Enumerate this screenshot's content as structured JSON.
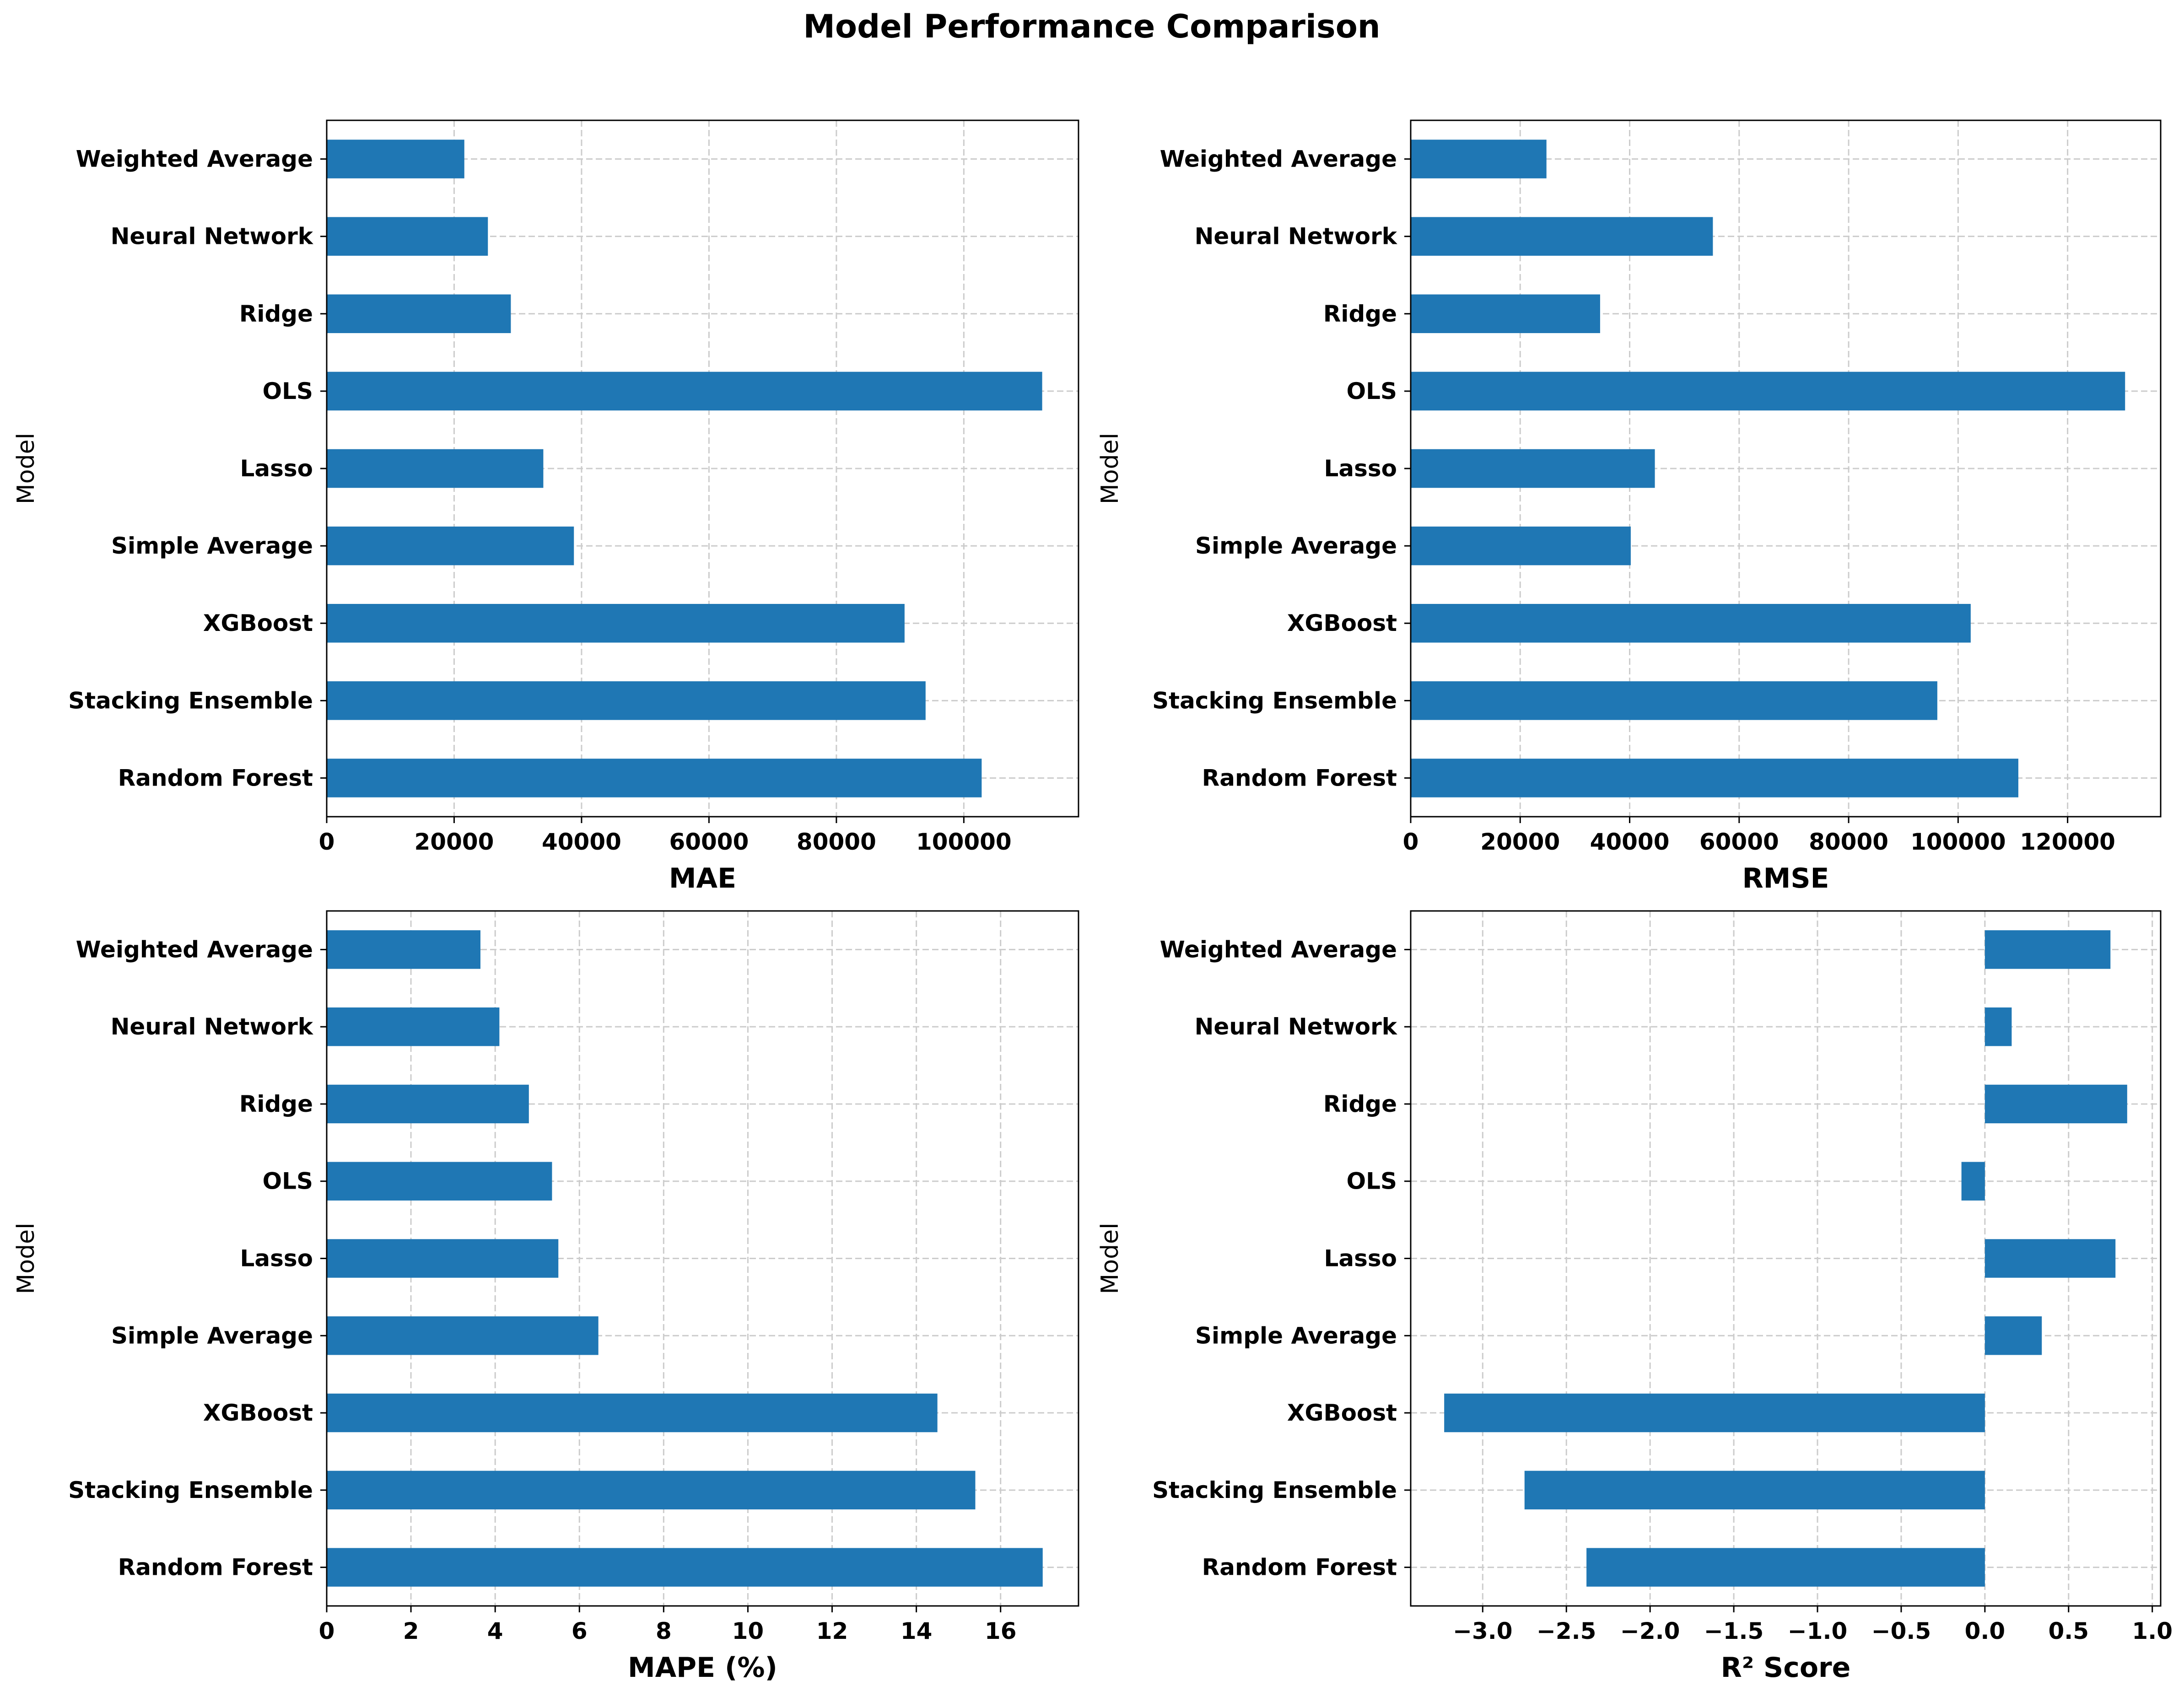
{
  "figure": {
    "title": "Model Performance Comparison"
  },
  "colors": {
    "bar": "#1f77b4",
    "grid": "#cccccc",
    "axis": "#000000",
    "background": "#ffffff"
  },
  "chart_data": [
    {
      "type": "bar",
      "orientation": "horizontal",
      "xlabel": "MAE",
      "ylabel": "Model",
      "categories": [
        "Random Forest",
        "Stacking Ensemble",
        "XGBoost",
        "Simple Average",
        "Lasso",
        "OLS",
        "Ridge",
        "Neural Network",
        "Weighted Average"
      ],
      "values": [
        102800,
        94000,
        90700,
        38800,
        34000,
        112300,
        28900,
        25300,
        21600
      ],
      "xlim": [
        0,
        118000
      ],
      "xticks": [
        0,
        20000,
        40000,
        60000,
        80000,
        100000
      ],
      "xtick_labels": [
        "0",
        "20000",
        "40000",
        "60000",
        "80000",
        "100000"
      ],
      "grid": true
    },
    {
      "type": "bar",
      "orientation": "horizontal",
      "xlabel": "RMSE",
      "ylabel": "Model",
      "categories": [
        "Random Forest",
        "Stacking Ensemble",
        "XGBoost",
        "Simple Average",
        "Lasso",
        "OLS",
        "Ridge",
        "Neural Network",
        "Weighted Average"
      ],
      "values": [
        111000,
        96200,
        102300,
        40200,
        44600,
        130500,
        34600,
        55200,
        24800
      ],
      "xlim": [
        0,
        137000
      ],
      "xticks": [
        0,
        20000,
        40000,
        60000,
        80000,
        100000,
        120000
      ],
      "xtick_labels": [
        "0",
        "20000",
        "40000",
        "60000",
        "80000",
        "100000",
        "120000"
      ],
      "grid": true
    },
    {
      "type": "bar",
      "orientation": "horizontal",
      "xlabel": "MAPE (%)",
      "ylabel": "Model",
      "categories": [
        "Random Forest",
        "Stacking Ensemble",
        "XGBoost",
        "Simple Average",
        "Lasso",
        "OLS",
        "Ridge",
        "Neural Network",
        "Weighted Average"
      ],
      "values": [
        17.0,
        15.4,
        14.5,
        6.45,
        5.5,
        5.35,
        4.8,
        4.1,
        3.65
      ],
      "xlim": [
        0,
        17.85
      ],
      "xticks": [
        0,
        2,
        4,
        6,
        8,
        10,
        12,
        14,
        16
      ],
      "xtick_labels": [
        "0",
        "2",
        "4",
        "6",
        "8",
        "10",
        "12",
        "14",
        "16"
      ],
      "grid": true
    },
    {
      "type": "bar",
      "orientation": "horizontal",
      "xlabel": "R² Score",
      "ylabel": "Model",
      "categories": [
        "Random Forest",
        "Stacking Ensemble",
        "XGBoost",
        "Simple Average",
        "Lasso",
        "OLS",
        "Ridge",
        "Neural Network",
        "Weighted Average"
      ],
      "values": [
        -2.38,
        -2.75,
        -3.23,
        0.34,
        0.78,
        -0.14,
        0.85,
        0.16,
        0.75
      ],
      "xlim": [
        -3.43,
        1.05
      ],
      "xticks": [
        -3.0,
        -2.5,
        -2.0,
        -1.5,
        -1.0,
        -0.5,
        0.0,
        0.5,
        1.0
      ],
      "xtick_labels": [
        "−3.0",
        "−2.5",
        "−2.0",
        "−1.5",
        "−1.0",
        "−0.5",
        "0.0",
        "0.5",
        "1.0"
      ],
      "grid": true
    }
  ]
}
